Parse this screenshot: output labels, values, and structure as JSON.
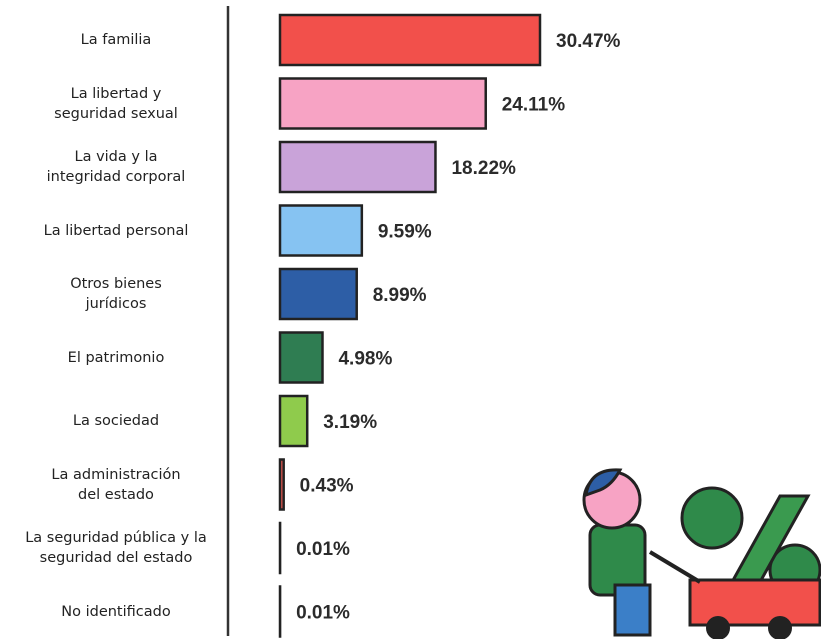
{
  "chart_data": {
    "type": "bar",
    "orientation": "horizontal",
    "categories": [
      "La familia",
      "La libertad y\nseguridad sexual",
      "La vida y la\nintegridad corporal",
      "La libertad personal",
      "Otros bienes\njurídicos",
      "El patrimonio",
      "La sociedad",
      "La administración\ndel estado",
      "La seguridad pública y la\nseguridad del estado",
      "No identificado"
    ],
    "values": [
      30.47,
      24.11,
      18.22,
      9.59,
      8.99,
      4.98,
      3.19,
      0.43,
      0.01,
      0.01
    ],
    "value_labels": [
      "30.47%",
      "24.11%",
      "18.22%",
      "9.59%",
      "8.99%",
      "4.98%",
      "3.19%",
      "0.43%",
      "0.01%",
      "0.01%"
    ],
    "colors": [
      "#f2504b",
      "#f7a3c4",
      "#c9a3d9",
      "#86c3f2",
      "#2d5ea6",
      "#2f7d52",
      "#8fcb4c",
      "#ea5a52",
      "#e79ab8",
      "#7d96b0"
    ]
  }
}
